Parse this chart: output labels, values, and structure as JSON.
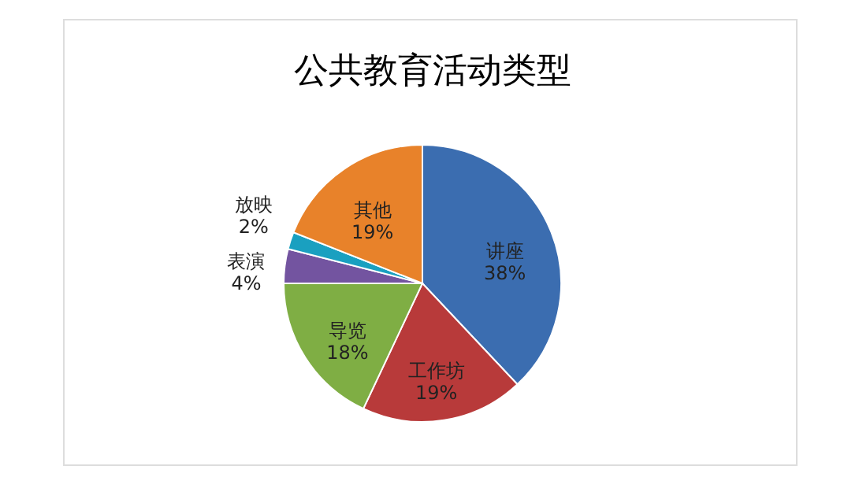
{
  "chart_data": {
    "type": "pie",
    "title": "公共教育活动类型",
    "categories": [
      "讲座",
      "工作坊",
      "导览",
      "表演",
      "放映",
      "其他"
    ],
    "values": [
      38,
      19,
      18,
      4,
      2,
      19
    ],
    "value_labels": [
      "38%",
      "19%",
      "18%",
      "4%",
      "2%",
      "19%"
    ],
    "colors": [
      "#3b6db0",
      "#b83a3a",
      "#7fae44",
      "#7354a0",
      "#1aa0c0",
      "#e8822a"
    ],
    "legend": false
  }
}
